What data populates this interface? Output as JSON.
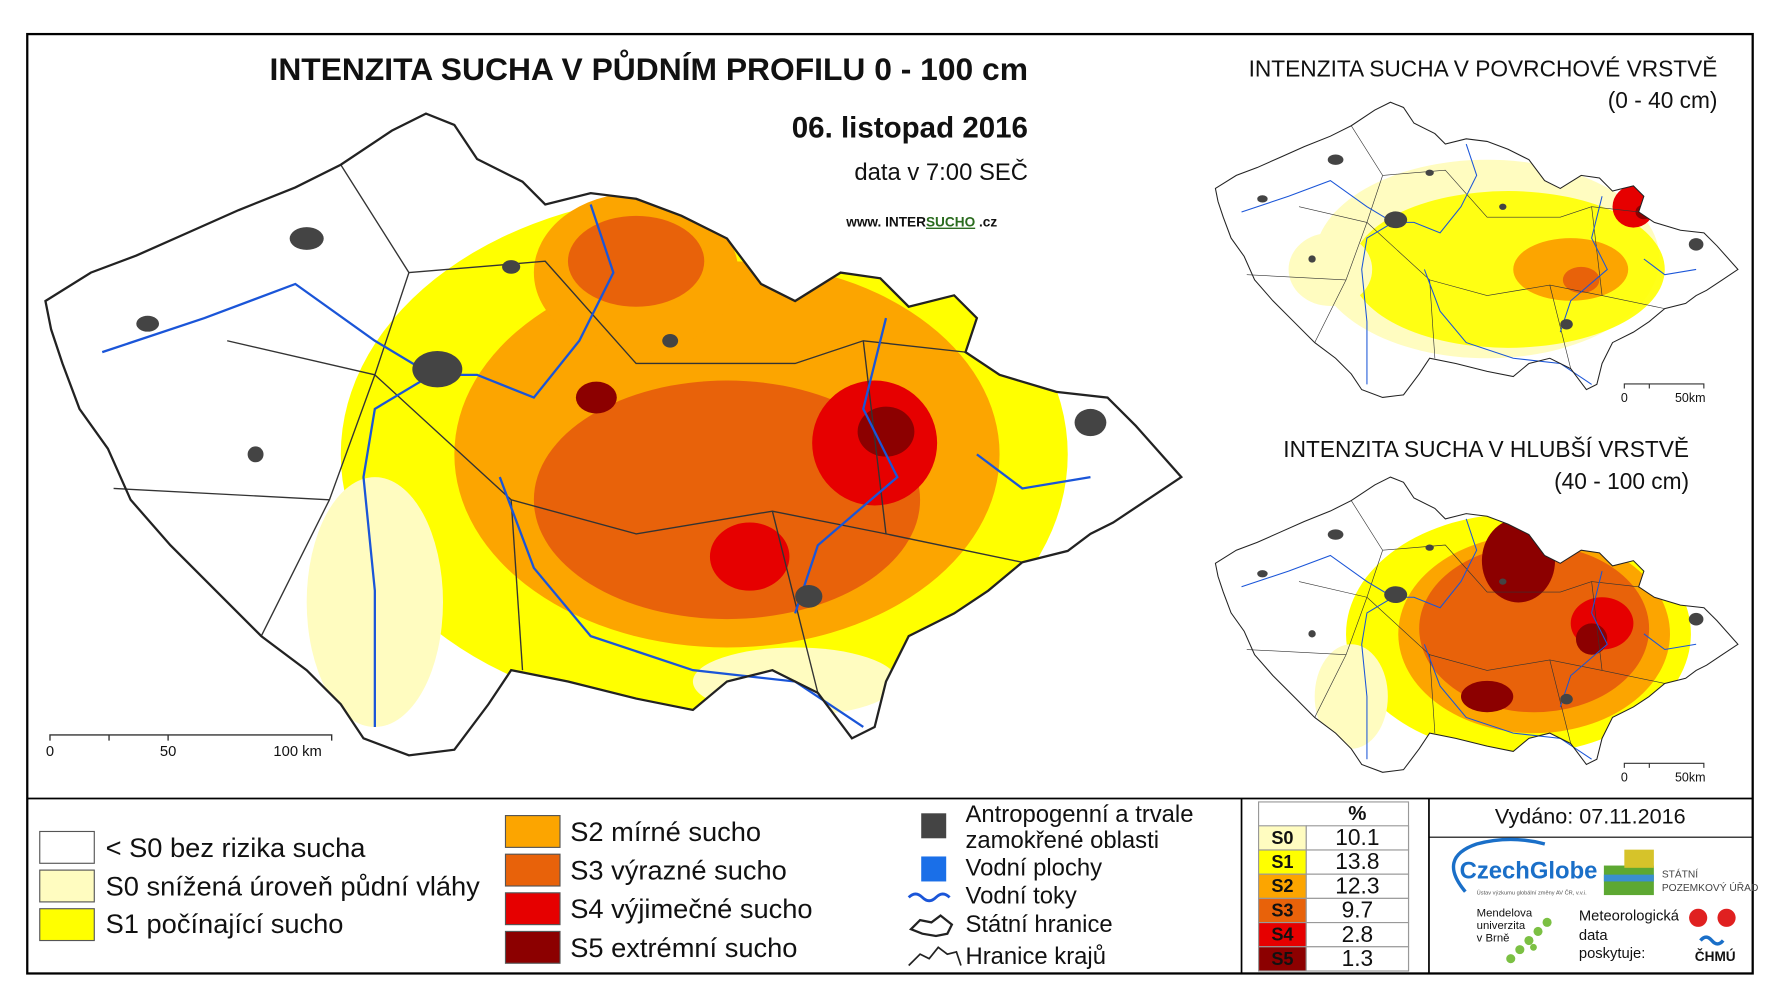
{
  "main_map": {
    "title": "INTENZITA SUCHA V PŮDNÍM PROFILU 0 - 100 cm",
    "date": "06. listopad 2016",
    "time_note": "data v 7:00 SEČ",
    "website": {
      "prefix": "www. INTER",
      "highlight": "SUCHO",
      "suffix": " .cz"
    },
    "scale": [
      "0",
      "50",
      "100 km"
    ]
  },
  "inset_surface": {
    "title": "INTENZITA SUCHA V POVRCHOVÉ VRSTVĚ",
    "depth": "(0 - 40 cm)",
    "scale": [
      "0",
      "50km"
    ]
  },
  "inset_deep": {
    "title": "INTENZITA SUCHA V HLUBŠÍ VRSTVĚ",
    "depth": "(40 - 100 cm)",
    "scale": [
      "0",
      "50km"
    ]
  },
  "legend": {
    "drought_classes": [
      "< S0 bez rizika sucha",
      "S0 snížená úroveň půdní vláhy",
      "S1 počínající sucho",
      "S2 mírné sucho",
      "S3 výrazné sucho",
      "S4 výjimečné sucho",
      "S5 extrémní sucho"
    ],
    "symbols": [
      [
        "Antropogenní a trvale",
        "zamokřené oblasti"
      ],
      [
        "Vodní plochy"
      ],
      [
        "Vodní toky"
      ],
      [
        "Státní hranice"
      ],
      [
        "Hranice krajů"
      ]
    ]
  },
  "table": {
    "header": "%",
    "rows": [
      [
        "S0",
        10.1
      ],
      [
        "S1",
        13.8
      ],
      [
        "S2",
        12.3
      ],
      [
        "S3",
        9.7
      ],
      [
        "S4",
        2.8
      ],
      [
        "S5",
        1.3
      ]
    ]
  },
  "issued": "Vydáno: 07.11.2016",
  "logos": {
    "czechglobe": "CzechGlobe",
    "czechglobe_sub": "Ústav výzkumu globální změny AV ČR, v.v.i.",
    "spu": [
      "STÁTNÍ",
      "POZEMKOVÝ ÚŘAD"
    ],
    "mendelu": [
      "Mendelova",
      "univerzita",
      "v Brně"
    ],
    "chmu_note": [
      "Meteorologická",
      "data",
      "poskytuje:"
    ],
    "chmu": "ČHMÚ"
  }
}
